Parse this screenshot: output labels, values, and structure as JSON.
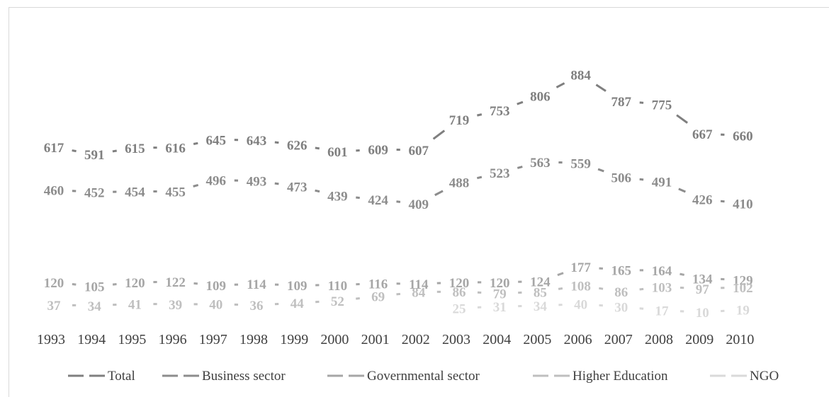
{
  "chart_data": {
    "type": "line",
    "title": "",
    "xlabel": "",
    "ylabel": "",
    "ylim": [
      0,
      950
    ],
    "grid": false,
    "legend_position": "bottom",
    "categories": [
      "1993",
      "1994",
      "1995",
      "1996",
      "1997",
      "1998",
      "1999",
      "2000",
      "2001",
      "2002",
      "2003",
      "2004",
      "2005",
      "2006",
      "2007",
      "2008",
      "2009",
      "2010"
    ],
    "series": [
      {
        "name": "Total",
        "color": "#7f7f7f",
        "dash": "long",
        "values": [
          617,
          591,
          615,
          616,
          645,
          643,
          626,
          601,
          609,
          607,
          719,
          753,
          806,
          884,
          787,
          775,
          667,
          660
        ]
      },
      {
        "name": "Business sector",
        "color": "#8c8c8c",
        "dash": "long",
        "values": [
          460,
          452,
          454,
          455,
          496,
          493,
          473,
          439,
          424,
          409,
          488,
          523,
          563,
          559,
          506,
          491,
          426,
          410
        ]
      },
      {
        "name": "Governmental sector",
        "color": "#a6a6a6",
        "dash": "long",
        "values": [
          120,
          105,
          120,
          122,
          109,
          114,
          109,
          110,
          116,
          114,
          120,
          120,
          124,
          177,
          165,
          164,
          134,
          129
        ]
      },
      {
        "name": "Higher Education",
        "color": "#bfbfbf",
        "dash": "long",
        "values": [
          37,
          34,
          41,
          39,
          40,
          36,
          44,
          52,
          69,
          84,
          86,
          79,
          85,
          108,
          86,
          103,
          97,
          102
        ]
      },
      {
        "name": "NGO",
        "color": "#d9d9d9",
        "dash": "long",
        "values": [
          null,
          null,
          null,
          null,
          null,
          null,
          null,
          null,
          null,
          null,
          25,
          31,
          34,
          40,
          30,
          17,
          10,
          19
        ]
      }
    ]
  }
}
